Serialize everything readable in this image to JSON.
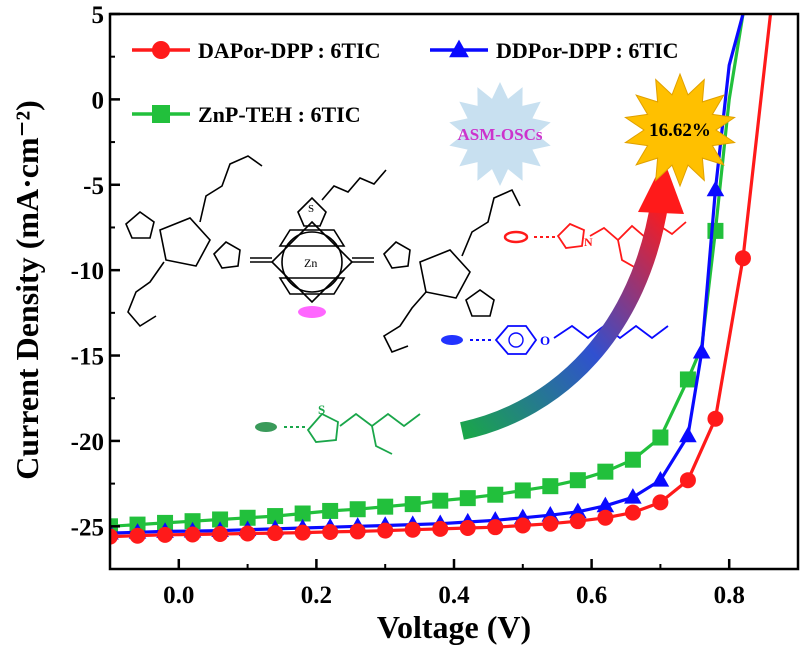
{
  "chart_data": {
    "type": "line",
    "xlabel": "Voltage (V)",
    "ylabel": "Current Density (mA·cm⁻²)",
    "xlim": [
      -0.1,
      0.9
    ],
    "ylim": [
      -27.5,
      5
    ],
    "x_ticks": [
      {
        "value": 0.0,
        "label": "0.0"
      },
      {
        "value": 0.2,
        "label": "0.2"
      },
      {
        "value": 0.4,
        "label": "0.4"
      },
      {
        "value": 0.6,
        "label": "0.6"
      },
      {
        "value": 0.8,
        "label": "0.8"
      }
    ],
    "y_ticks": [
      {
        "value": 5,
        "label": "5"
      },
      {
        "value": 0,
        "label": "0"
      },
      {
        "value": -5,
        "label": "-5"
      },
      {
        "value": -10,
        "label": "-10"
      },
      {
        "value": -15,
        "label": "-15"
      },
      {
        "value": -20,
        "label": "-20"
      },
      {
        "value": -25,
        "label": "-25"
      }
    ],
    "grid": false,
    "legend_position": "top-left",
    "series": [
      {
        "name": "DAPor-DPP : 6TIC",
        "color": "#ff1a1a",
        "marker": "circle",
        "x": [
          -0.1,
          -0.06,
          -0.02,
          0.02,
          0.06,
          0.1,
          0.14,
          0.18,
          0.22,
          0.26,
          0.3,
          0.34,
          0.38,
          0.42,
          0.46,
          0.5,
          0.54,
          0.58,
          0.62,
          0.66,
          0.7,
          0.74,
          0.78,
          0.82,
          0.86
        ],
        "y": [
          -25.6,
          -25.55,
          -25.5,
          -25.48,
          -25.45,
          -25.42,
          -25.4,
          -25.37,
          -25.33,
          -25.3,
          -25.25,
          -25.2,
          -25.15,
          -25.1,
          -25.05,
          -24.95,
          -24.85,
          -24.7,
          -24.5,
          -24.2,
          -23.6,
          -22.3,
          -18.7,
          -9.3,
          5.0
        ],
        "marker_x": [
          -0.1,
          -0.06,
          -0.02,
          0.02,
          0.06,
          0.1,
          0.14,
          0.18,
          0.22,
          0.26,
          0.3,
          0.34,
          0.38,
          0.42,
          0.46,
          0.5,
          0.54,
          0.58,
          0.62,
          0.66,
          0.7,
          0.74,
          0.78,
          0.82
        ]
      },
      {
        "name": "DDPor-DPP : 6TIC",
        "color": "#0a0aff",
        "marker": "triangle",
        "x": [
          -0.1,
          -0.06,
          -0.02,
          0.02,
          0.06,
          0.1,
          0.14,
          0.18,
          0.22,
          0.26,
          0.3,
          0.34,
          0.38,
          0.42,
          0.46,
          0.5,
          0.54,
          0.58,
          0.62,
          0.66,
          0.7,
          0.74,
          0.76,
          0.78,
          0.8,
          0.82
        ],
        "y": [
          -25.4,
          -25.35,
          -25.3,
          -25.28,
          -25.25,
          -25.2,
          -25.15,
          -25.1,
          -25.05,
          -25.0,
          -24.95,
          -24.9,
          -24.85,
          -24.75,
          -24.65,
          -24.5,
          -24.35,
          -24.15,
          -23.8,
          -23.3,
          -22.3,
          -19.7,
          -14.8,
          -5.3,
          2.0,
          5.0
        ],
        "marker_x": [
          -0.1,
          -0.06,
          -0.02,
          0.02,
          0.06,
          0.1,
          0.14,
          0.18,
          0.22,
          0.26,
          0.3,
          0.34,
          0.38,
          0.42,
          0.46,
          0.5,
          0.54,
          0.58,
          0.62,
          0.66,
          0.7,
          0.74,
          0.76,
          0.78
        ]
      },
      {
        "name": "ZnP-TEH : 6TIC",
        "color": "#22c03c",
        "marker": "square",
        "x": [
          -0.1,
          -0.06,
          -0.02,
          0.02,
          0.06,
          0.1,
          0.14,
          0.18,
          0.22,
          0.26,
          0.3,
          0.34,
          0.38,
          0.42,
          0.46,
          0.5,
          0.54,
          0.58,
          0.62,
          0.66,
          0.7,
          0.74,
          0.76,
          0.78,
          0.8,
          0.82
        ],
        "y": [
          -25.0,
          -24.9,
          -24.8,
          -24.7,
          -24.6,
          -24.5,
          -24.4,
          -24.25,
          -24.1,
          -24.0,
          -23.85,
          -23.7,
          -23.5,
          -23.35,
          -23.15,
          -22.9,
          -22.65,
          -22.3,
          -21.8,
          -21.1,
          -19.8,
          -16.4,
          -14.5,
          -7.7,
          0.0,
          5.0
        ],
        "marker_x": [
          -0.1,
          -0.06,
          -0.02,
          0.02,
          0.06,
          0.1,
          0.14,
          0.18,
          0.22,
          0.26,
          0.3,
          0.34,
          0.38,
          0.42,
          0.46,
          0.5,
          0.54,
          0.58,
          0.62,
          0.66,
          0.7,
          0.74,
          0.78
        ]
      }
    ],
    "annotations": {
      "badge_text": "ASM-OSCs",
      "pce_text": "16.62%",
      "atom_S": "S",
      "atom_N": "N",
      "atom_O": "O",
      "atom_Zn": "Zn"
    }
  }
}
